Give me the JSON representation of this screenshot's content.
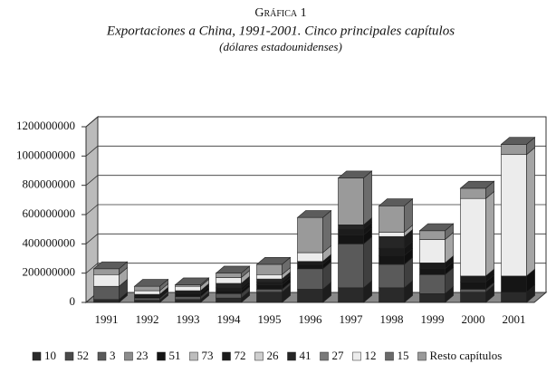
{
  "chart_data": {
    "type": "bar3d_stacked",
    "title": "Gráfica 1",
    "subtitle": "Exportaciones a China, 1991-2001. Cinco principales capítulos",
    "note": "(dólares estadounidenses)",
    "categories": [
      "1991",
      "1992",
      "1993",
      "1994",
      "1995",
      "1996",
      "1997",
      "1998",
      "1999",
      "2000",
      "2001"
    ],
    "ylim": [
      0,
      1200000000
    ],
    "yticks": [
      0,
      200000000,
      400000000,
      600000000,
      800000000,
      1000000000,
      1200000000
    ],
    "grid": true,
    "series": [
      {
        "name": "10",
        "color": "#2a2a2a",
        "values": [
          20000000,
          15000000,
          20000000,
          30000000,
          70000000,
          90000000,
          100000000,
          100000000,
          60000000,
          70000000,
          70000000
        ]
      },
      {
        "name": "52",
        "color": "#4a4a4a",
        "values": [
          0,
          0,
          0,
          0,
          0,
          0,
          0,
          0,
          0,
          0,
          0
        ]
      },
      {
        "name": "3",
        "color": "#5a5a5a",
        "values": [
          90000000,
          15000000,
          20000000,
          30000000,
          20000000,
          140000000,
          300000000,
          160000000,
          130000000,
          20000000,
          0
        ]
      },
      {
        "name": "23",
        "color": "#8c8c8c",
        "values": [
          0,
          0,
          0,
          0,
          0,
          0,
          0,
          0,
          0,
          0,
          0
        ]
      },
      {
        "name": "51",
        "color": "#151515",
        "values": [
          0,
          10000000,
          20000000,
          20000000,
          30000000,
          30000000,
          60000000,
          60000000,
          40000000,
          50000000,
          110000000
        ]
      },
      {
        "name": "73",
        "color": "#bdbdbd",
        "values": [
          0,
          0,
          0,
          0,
          0,
          0,
          0,
          0,
          0,
          0,
          0
        ]
      },
      {
        "name": "72",
        "color": "#1c1c1c",
        "values": [
          0,
          15000000,
          20000000,
          20000000,
          20000000,
          20000000,
          40000000,
          50000000,
          40000000,
          40000000,
          0
        ]
      },
      {
        "name": "26",
        "color": "#cfcfcf",
        "values": [
          0,
          0,
          0,
          0,
          0,
          0,
          0,
          0,
          0,
          0,
          0
        ]
      },
      {
        "name": "41",
        "color": "#262626",
        "values": [
          0,
          0,
          0,
          30000000,
          20000000,
          0,
          30000000,
          80000000,
          0,
          0,
          0
        ]
      },
      {
        "name": "27",
        "color": "#7a7a7a",
        "values": [
          0,
          0,
          0,
          0,
          0,
          0,
          0,
          0,
          0,
          0,
          0
        ]
      },
      {
        "name": "12",
        "color": "#ececec",
        "values": [
          80000000,
          25000000,
          30000000,
          40000000,
          30000000,
          60000000,
          0,
          30000000,
          160000000,
          530000000,
          830000000
        ]
      },
      {
        "name": "15",
        "color": "#6a6a6a",
        "values": [
          0,
          0,
          0,
          0,
          0,
          0,
          0,
          0,
          0,
          0,
          0
        ]
      },
      {
        "name": "Resto capítulos",
        "color": "#9a9a9a",
        "values": [
          40000000,
          30000000,
          10000000,
          30000000,
          70000000,
          240000000,
          320000000,
          180000000,
          60000000,
          70000000,
          70000000
        ]
      }
    ]
  }
}
